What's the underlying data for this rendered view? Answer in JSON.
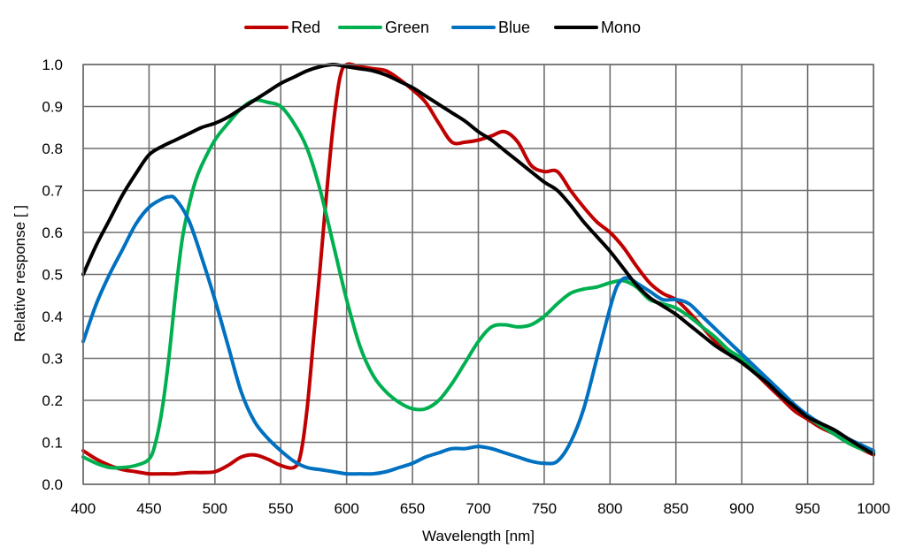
{
  "chart_data": {
    "type": "line",
    "title": "",
    "xlabel": "Wavelength  [nm]",
    "ylabel": "Relative  response [ ]",
    "xlim": [
      400,
      1000
    ],
    "ylim": [
      0,
      1.0
    ],
    "x_ticks": [
      400,
      450,
      500,
      550,
      600,
      650,
      700,
      750,
      800,
      850,
      900,
      950,
      1000
    ],
    "y_ticks": [
      0.0,
      0.1,
      0.2,
      0.3,
      0.4,
      0.5,
      0.6,
      0.7,
      0.8,
      0.9,
      1.0
    ],
    "x_tick_labels": [
      "400",
      "450",
      "500",
      "550",
      "600",
      "650",
      "700",
      "750",
      "800",
      "850",
      "900",
      "950",
      "1000"
    ],
    "y_tick_labels": [
      "0.0",
      "0.1",
      "0.2",
      "0.3",
      "0.4",
      "0.5",
      "0.6",
      "0.7",
      "0.8",
      "0.9",
      "1.0"
    ],
    "grid": true,
    "legend_position": "top-center",
    "series": [
      {
        "name": "Red",
        "color": "#c00000",
        "x": [
          400,
          410,
          420,
          430,
          440,
          450,
          460,
          470,
          480,
          490,
          500,
          510,
          520,
          530,
          540,
          550,
          560,
          565,
          570,
          575,
          580,
          585,
          590,
          595,
          600,
          610,
          620,
          630,
          640,
          650,
          660,
          670,
          680,
          690,
          700,
          710,
          720,
          730,
          740,
          750,
          760,
          770,
          780,
          790,
          800,
          810,
          820,
          830,
          840,
          850,
          860,
          870,
          880,
          890,
          900,
          910,
          920,
          930,
          940,
          950,
          960,
          970,
          980,
          990,
          1000
        ],
        "y": [
          0.08,
          0.06,
          0.045,
          0.035,
          0.03,
          0.025,
          0.025,
          0.025,
          0.028,
          0.028,
          0.03,
          0.045,
          0.065,
          0.07,
          0.06,
          0.045,
          0.04,
          0.07,
          0.18,
          0.35,
          0.52,
          0.7,
          0.86,
          0.97,
          1.0,
          0.995,
          0.99,
          0.985,
          0.965,
          0.94,
          0.91,
          0.86,
          0.815,
          0.815,
          0.82,
          0.83,
          0.84,
          0.815,
          0.76,
          0.745,
          0.745,
          0.7,
          0.66,
          0.625,
          0.6,
          0.565,
          0.52,
          0.48,
          0.455,
          0.44,
          0.41,
          0.375,
          0.34,
          0.315,
          0.29,
          0.265,
          0.235,
          0.205,
          0.175,
          0.155,
          0.135,
          0.12,
          0.1,
          0.085,
          0.07
        ]
      },
      {
        "name": "Green",
        "color": "#00b050",
        "x": [
          400,
          410,
          420,
          430,
          440,
          450,
          455,
          460,
          465,
          470,
          475,
          480,
          485,
          490,
          500,
          510,
          520,
          530,
          540,
          550,
          560,
          570,
          580,
          590,
          600,
          610,
          620,
          630,
          640,
          650,
          660,
          670,
          680,
          690,
          700,
          710,
          720,
          730,
          740,
          750,
          760,
          770,
          780,
          790,
          800,
          810,
          820,
          830,
          840,
          850,
          860,
          870,
          880,
          890,
          900,
          910,
          920,
          930,
          940,
          950,
          960,
          970,
          980,
          990,
          1000
        ],
        "y": [
          0.065,
          0.05,
          0.04,
          0.04,
          0.045,
          0.06,
          0.1,
          0.18,
          0.3,
          0.45,
          0.58,
          0.66,
          0.72,
          0.76,
          0.82,
          0.86,
          0.895,
          0.915,
          0.91,
          0.9,
          0.86,
          0.8,
          0.7,
          0.57,
          0.44,
          0.33,
          0.26,
          0.22,
          0.195,
          0.18,
          0.18,
          0.2,
          0.24,
          0.29,
          0.34,
          0.375,
          0.38,
          0.375,
          0.38,
          0.4,
          0.43,
          0.455,
          0.465,
          0.47,
          0.48,
          0.485,
          0.47,
          0.44,
          0.43,
          0.42,
          0.4,
          0.375,
          0.35,
          0.32,
          0.3,
          0.27,
          0.245,
          0.215,
          0.185,
          0.16,
          0.14,
          0.12,
          0.1,
          0.085,
          0.075
        ]
      },
      {
        "name": "Blue",
        "color": "#0070c0",
        "x": [
          400,
          410,
          420,
          430,
          440,
          450,
          460,
          465,
          470,
          480,
          490,
          500,
          510,
          520,
          530,
          540,
          550,
          560,
          570,
          580,
          590,
          600,
          610,
          620,
          630,
          640,
          650,
          660,
          670,
          680,
          690,
          700,
          710,
          720,
          730,
          740,
          750,
          760,
          770,
          780,
          790,
          800,
          805,
          810,
          815,
          820,
          830,
          840,
          850,
          860,
          870,
          880,
          890,
          900,
          910,
          920,
          930,
          940,
          950,
          960,
          970,
          980,
          990,
          1000
        ],
        "y": [
          0.34,
          0.43,
          0.5,
          0.56,
          0.62,
          0.66,
          0.68,
          0.685,
          0.68,
          0.63,
          0.54,
          0.44,
          0.33,
          0.22,
          0.15,
          0.11,
          0.08,
          0.055,
          0.04,
          0.035,
          0.03,
          0.025,
          0.025,
          0.025,
          0.03,
          0.04,
          0.05,
          0.065,
          0.075,
          0.085,
          0.085,
          0.09,
          0.085,
          0.075,
          0.065,
          0.055,
          0.05,
          0.055,
          0.1,
          0.18,
          0.3,
          0.42,
          0.47,
          0.49,
          0.49,
          0.48,
          0.46,
          0.44,
          0.44,
          0.43,
          0.4,
          0.37,
          0.34,
          0.31,
          0.28,
          0.25,
          0.22,
          0.19,
          0.165,
          0.145,
          0.13,
          0.11,
          0.095,
          0.08
        ]
      },
      {
        "name": "Mono",
        "color": "#000000",
        "x": [
          400,
          410,
          420,
          430,
          440,
          450,
          460,
          470,
          480,
          490,
          500,
          510,
          520,
          530,
          540,
          550,
          560,
          570,
          580,
          590,
          600,
          610,
          620,
          630,
          640,
          650,
          660,
          670,
          680,
          690,
          700,
          710,
          720,
          730,
          740,
          750,
          760,
          770,
          780,
          790,
          800,
          810,
          820,
          830,
          840,
          850,
          860,
          870,
          880,
          890,
          900,
          910,
          920,
          930,
          940,
          950,
          960,
          970,
          980,
          990,
          1000
        ],
        "y": [
          0.5,
          0.57,
          0.63,
          0.69,
          0.74,
          0.785,
          0.805,
          0.82,
          0.835,
          0.85,
          0.86,
          0.875,
          0.895,
          0.915,
          0.935,
          0.955,
          0.97,
          0.985,
          0.995,
          1.0,
          0.995,
          0.99,
          0.985,
          0.975,
          0.96,
          0.945,
          0.925,
          0.905,
          0.885,
          0.865,
          0.84,
          0.82,
          0.795,
          0.77,
          0.745,
          0.72,
          0.7,
          0.665,
          0.625,
          0.59,
          0.555,
          0.515,
          0.475,
          0.445,
          0.425,
          0.405,
          0.38,
          0.355,
          0.33,
          0.31,
          0.29,
          0.265,
          0.24,
          0.21,
          0.185,
          0.16,
          0.145,
          0.13,
          0.11,
          0.09,
          0.072
        ]
      }
    ]
  }
}
